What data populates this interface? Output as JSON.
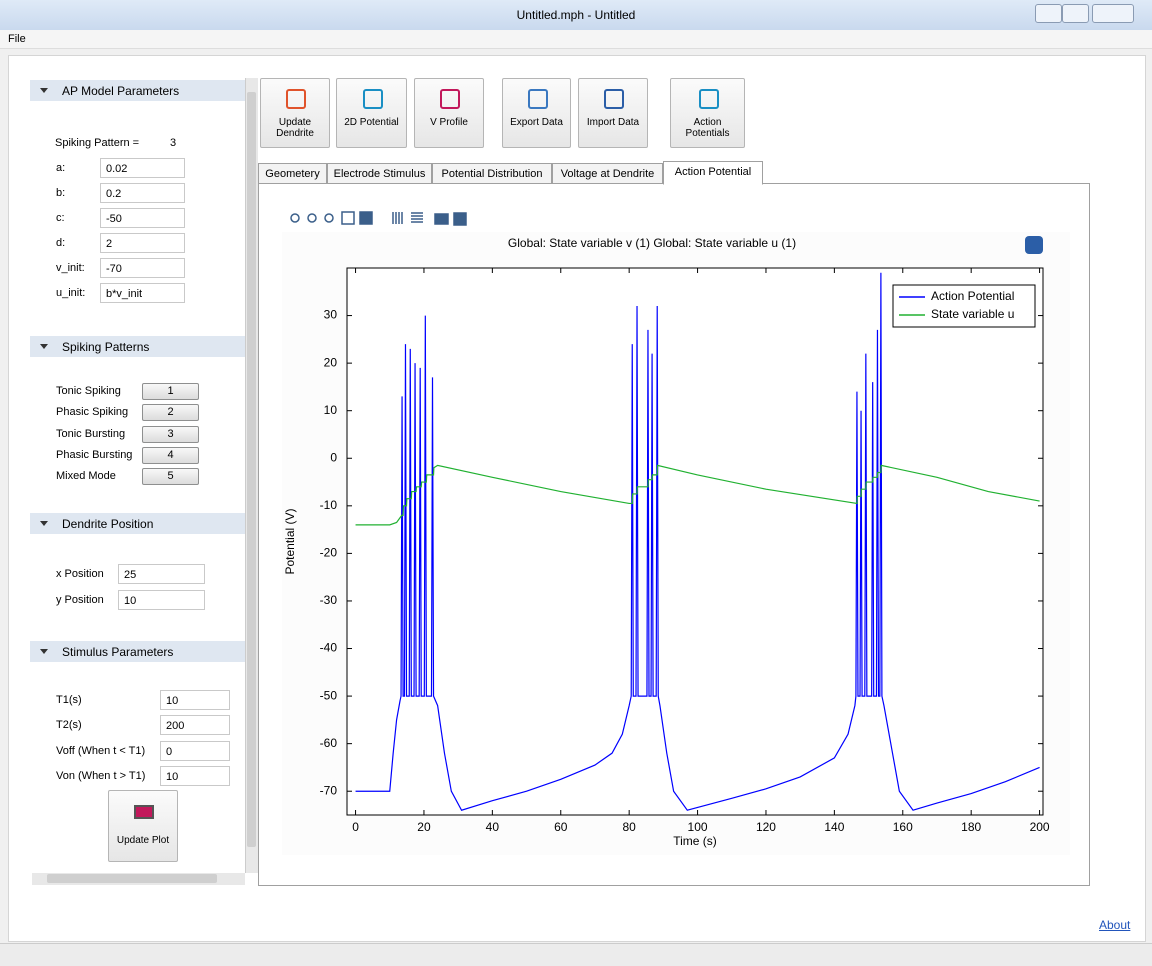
{
  "window": {
    "title": "Untitled.mph - Untitled"
  },
  "menu": [
    "File"
  ],
  "sidebar": {
    "sections": [
      {
        "title": "AP Model Parameters",
        "note_label": "Spiking Pattern =",
        "note_value": "3",
        "fields": [
          {
            "label": "a:",
            "value": "0.02"
          },
          {
            "label": "b:",
            "value": "0.2"
          },
          {
            "label": "c:",
            "value": "-50"
          },
          {
            "label": "d:",
            "value": "2"
          },
          {
            "label": "v_init:",
            "value": "-70"
          },
          {
            "label": "u_init:",
            "value": "b*v_init"
          }
        ]
      },
      {
        "title": "Spiking Patterns",
        "buttons": [
          {
            "label": "Tonic Spiking",
            "value": "1"
          },
          {
            "label": "Phasic Spiking",
            "value": "2"
          },
          {
            "label": "Tonic Bursting",
            "value": "3"
          },
          {
            "label": "Phasic Bursting",
            "value": "4"
          },
          {
            "label": "Mixed Mode",
            "value": "5"
          }
        ]
      },
      {
        "title": "Dendrite Position",
        "fields": [
          {
            "label": "x Position",
            "value": "25"
          },
          {
            "label": "y Position",
            "value": "10"
          }
        ]
      },
      {
        "title": "Stimulus Parameters",
        "fields": [
          {
            "label": "T1(s)",
            "value": "10"
          },
          {
            "label": "T2(s)",
            "value": "200"
          },
          {
            "label": "Voff (When t < T1)",
            "value": "0"
          },
          {
            "label": "Von (When t > T1)",
            "value": "10"
          }
        ],
        "button": "Update Plot"
      }
    ]
  },
  "toolbar": [
    "Update Dendrite",
    "2D Potential",
    "V Profile",
    "Export Data",
    "Import Data",
    "Action Potentials"
  ],
  "tabs": [
    "Geometery",
    "Electrode Stimulus",
    "Potential Distribution",
    "Voltage at Dendrite",
    "Action Potential"
  ],
  "active_tab": 4,
  "footer": {
    "link": "About"
  },
  "chart_data": {
    "type": "line",
    "title": "Global: State variable v (1)  Global: State variable u (1)",
    "x_label": "Time (s)",
    "y_label": "Potential (V)",
    "xlim": [
      -2.5,
      201
    ],
    "ylim": [
      -75,
      40
    ],
    "xticks": [
      0,
      20,
      40,
      60,
      80,
      100,
      120,
      140,
      160,
      180,
      200
    ],
    "yticks": [
      -70,
      -60,
      -50,
      -40,
      -30,
      -20,
      -10,
      0,
      10,
      20,
      30
    ],
    "legend": "upper right",
    "series": [
      {
        "name": "Action Potential",
        "color": "#0000ff",
        "x": [
          0,
          10,
          11,
          12,
          13,
          13.3,
          13.6,
          13.9,
          14.3,
          14.6,
          14.9,
          15.7,
          16,
          16.3,
          17.1,
          17.4,
          17.7,
          18.6,
          18.9,
          19.2,
          20.1,
          20.4,
          20.7,
          22.2,
          22.5,
          22.8,
          24,
          26,
          28,
          31,
          40,
          50,
          60,
          70,
          75,
          78,
          80,
          80.6,
          80.9,
          81.2,
          82,
          82.3,
          82.6,
          85.2,
          85.5,
          85.8,
          86.4,
          86.7,
          87,
          87.9,
          88.2,
          88.5,
          89,
          91,
          93,
          97,
          110,
          120,
          130,
          140,
          144,
          146,
          146.3,
          146.6,
          146.9,
          147.5,
          147.8,
          148.1,
          148.9,
          149.2,
          149.5,
          150.9,
          151.2,
          151.5,
          152.3,
          152.6,
          152.9,
          153.3,
          153.6,
          153.9,
          154.5,
          157,
          159,
          163,
          170,
          180,
          190,
          200
        ],
        "values": [
          -70,
          -70,
          -62,
          -55,
          -51,
          -50,
          13,
          -50,
          -50,
          24,
          -50,
          -50,
          23,
          -50,
          -50,
          20,
          -50,
          -50,
          19,
          -50,
          -50,
          30,
          -50,
          -50,
          17,
          -50,
          -52,
          -62,
          -70,
          -74,
          -72,
          -70,
          -67.5,
          -64.5,
          -62,
          -58,
          -52,
          -50,
          24,
          -50,
          -50,
          32,
          -50,
          -50,
          27,
          -50,
          -50,
          22,
          -50,
          -50,
          32,
          -50,
          -52,
          -62,
          -70,
          -74,
          -71.5,
          -69.5,
          -67,
          -63,
          -58,
          -52,
          -50,
          14,
          -50,
          -50,
          10,
          -50,
          -50,
          22,
          -50,
          -50,
          16,
          -50,
          -50,
          27,
          -50,
          -50,
          39,
          -50,
          -52,
          -62,
          -70,
          -74,
          -72.5,
          -70.5,
          -68,
          -65
        ]
      },
      {
        "name": "State variable u",
        "color": "#21b131",
        "x": [
          0,
          10,
          12,
          13.5,
          13.9,
          14,
          14.9,
          15,
          16.3,
          16.4,
          17.7,
          17.8,
          19.2,
          19.3,
          20.7,
          20.8,
          22.8,
          22.9,
          24,
          40,
          60,
          80,
          80.9,
          81,
          82.3,
          82.4,
          85.5,
          85.6,
          86.7,
          86.8,
          88.2,
          88.3,
          100,
          120,
          146.6,
          146.7,
          147.8,
          147.9,
          149.2,
          149.3,
          151.2,
          151.3,
          152.6,
          152.7,
          153.6,
          153.7,
          170,
          185,
          200
        ],
        "values": [
          -14,
          -14,
          -13.5,
          -12,
          -12,
          -10,
          -10,
          -8.5,
          -8.5,
          -7,
          -7,
          -6,
          -6,
          -5,
          -5,
          -3.5,
          -3.5,
          -2,
          -1.5,
          -4,
          -7,
          -9.5,
          -9.5,
          -7.5,
          -7.5,
          -6,
          -6,
          -4.5,
          -4.5,
          -3.5,
          -3.5,
          -1.5,
          -3.5,
          -6.5,
          -9.5,
          -8,
          -8,
          -6.5,
          -6.5,
          -5,
          -5,
          -4,
          -4,
          -3,
          -3,
          -1.5,
          -4,
          -7,
          -9
        ]
      }
    ]
  }
}
